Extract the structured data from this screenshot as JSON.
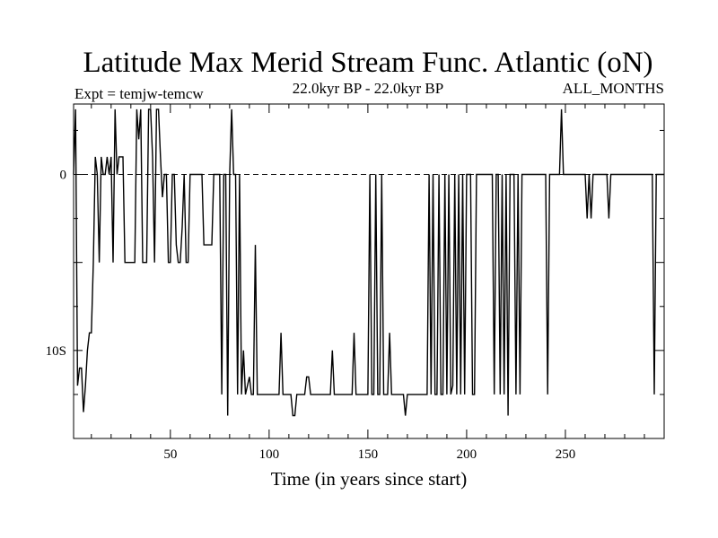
{
  "chart_data": {
    "type": "line",
    "title": "Latitude Max Merid Stream Func. Atlantic (oN)",
    "subtitle_left": "Expt = temjw-temcw",
    "subtitle_center": "22.0kyr BP - 22.0kyr BP",
    "subtitle_right": "ALL_MONTHS",
    "xlabel": "Time (in years since start)",
    "ylabel": "",
    "xlim": [
      1,
      300
    ],
    "ylim": [
      -15,
      4
    ],
    "x_ticks": [
      {
        "value": 50,
        "label": "50"
      },
      {
        "value": 100,
        "label": "100"
      },
      {
        "value": 150,
        "label": "150"
      },
      {
        "value": 200,
        "label": "200"
      },
      {
        "value": 250,
        "label": "250"
      }
    ],
    "y_ticks": [
      {
        "value": 0,
        "label": "0"
      },
      {
        "value": -10,
        "label": "10S"
      }
    ],
    "reference_line": {
      "value": 0,
      "style": "dashed"
    },
    "grid": false,
    "series": [
      {
        "values": [
          [
            1,
            0
          ],
          [
            2,
            3.7
          ],
          [
            3,
            -12
          ],
          [
            4,
            -11
          ],
          [
            5,
            -11
          ],
          [
            6,
            -13.5
          ],
          [
            7,
            -12
          ],
          [
            8,
            -10
          ],
          [
            9,
            -9
          ],
          [
            10,
            -9
          ],
          [
            11,
            -5
          ],
          [
            12,
            1
          ],
          [
            13,
            0
          ],
          [
            14,
            -5
          ],
          [
            15,
            1
          ],
          [
            16,
            0
          ],
          [
            17,
            0
          ],
          [
            18,
            1
          ],
          [
            19,
            0
          ],
          [
            20,
            1
          ],
          [
            21,
            -5
          ],
          [
            22,
            3.7
          ],
          [
            23,
            0
          ],
          [
            24,
            1
          ],
          [
            25,
            1
          ],
          [
            26,
            1
          ],
          [
            27,
            -5
          ],
          [
            28,
            -5
          ],
          [
            29,
            -5
          ],
          [
            30,
            -5
          ],
          [
            31,
            -5
          ],
          [
            32,
            -5
          ],
          [
            33,
            3.7
          ],
          [
            34,
            2
          ],
          [
            35,
            3.7
          ],
          [
            36,
            -5
          ],
          [
            37,
            -5
          ],
          [
            38,
            -5
          ],
          [
            39,
            3.7
          ],
          [
            40,
            3.7
          ],
          [
            41,
            1
          ],
          [
            42,
            -5
          ],
          [
            43,
            3.7
          ],
          [
            44,
            3.7
          ],
          [
            45,
            1
          ],
          [
            46,
            -1.3
          ],
          [
            47,
            0
          ],
          [
            48,
            0
          ],
          [
            49,
            -5
          ],
          [
            50,
            -5
          ],
          [
            51,
            0
          ],
          [
            52,
            0
          ],
          [
            53,
            -4
          ],
          [
            54,
            -5
          ],
          [
            55,
            -5
          ],
          [
            56,
            -3
          ],
          [
            57,
            0
          ],
          [
            58,
            -5
          ],
          [
            59,
            -5
          ],
          [
            60,
            0
          ],
          [
            61,
            0
          ],
          [
            62,
            0
          ],
          [
            63,
            0
          ],
          [
            64,
            0
          ],
          [
            65,
            0
          ],
          [
            66,
            0
          ],
          [
            67,
            -4
          ],
          [
            68,
            -4
          ],
          [
            69,
            -4
          ],
          [
            70,
            -4
          ],
          [
            71,
            -4
          ],
          [
            72,
            0
          ],
          [
            73,
            0
          ],
          [
            74,
            0
          ],
          [
            75,
            0
          ],
          [
            76,
            -12.5
          ],
          [
            77,
            0
          ],
          [
            78,
            0
          ],
          [
            79,
            -13.7
          ],
          [
            80,
            0
          ],
          [
            81,
            3.7
          ],
          [
            82,
            0
          ],
          [
            83,
            0
          ],
          [
            84,
            -12.5
          ],
          [
            85,
            0
          ],
          [
            86,
            -12.5
          ],
          [
            87,
            -10
          ],
          [
            88,
            -12.5
          ],
          [
            89,
            -12
          ],
          [
            90,
            -11.5
          ],
          [
            91,
            -12.5
          ],
          [
            92,
            -12.5
          ],
          [
            93,
            -4
          ],
          [
            94,
            -12.5
          ],
          [
            95,
            -12.5
          ],
          [
            96,
            -12.5
          ],
          [
            97,
            -12.5
          ],
          [
            98,
            -12.5
          ],
          [
            99,
            -12.5
          ],
          [
            100,
            -12.5
          ],
          [
            101,
            -12.5
          ],
          [
            102,
            -12.5
          ],
          [
            103,
            -12.5
          ],
          [
            104,
            -12.5
          ],
          [
            105,
            -12.5
          ],
          [
            106,
            -9
          ],
          [
            107,
            -12.5
          ],
          [
            108,
            -12.5
          ],
          [
            109,
            -12.5
          ],
          [
            110,
            -12.5
          ],
          [
            111,
            -12.5
          ],
          [
            112,
            -13.7
          ],
          [
            113,
            -13.7
          ],
          [
            114,
            -12.5
          ],
          [
            115,
            -12.5
          ],
          [
            116,
            -12.5
          ],
          [
            117,
            -12.5
          ],
          [
            118,
            -12.5
          ],
          [
            119,
            -11.5
          ],
          [
            120,
            -11.5
          ],
          [
            121,
            -12.5
          ],
          [
            122,
            -12.5
          ],
          [
            123,
            -12.5
          ],
          [
            124,
            -12.5
          ],
          [
            125,
            -12.5
          ],
          [
            126,
            -12.5
          ],
          [
            127,
            -12.5
          ],
          [
            128,
            -12.5
          ],
          [
            129,
            -12.5
          ],
          [
            130,
            -12.5
          ],
          [
            131,
            -12.5
          ],
          [
            132,
            -10
          ],
          [
            133,
            -12.5
          ],
          [
            134,
            -12.5
          ],
          [
            135,
            -12.5
          ],
          [
            136,
            -12.5
          ],
          [
            137,
            -12.5
          ],
          [
            138,
            -12.5
          ],
          [
            139,
            -12.5
          ],
          [
            140,
            -12.5
          ],
          [
            141,
            -12.5
          ],
          [
            142,
            -12.5
          ],
          [
            143,
            -9
          ],
          [
            144,
            -12.5
          ],
          [
            145,
            -12.5
          ],
          [
            146,
            -12.5
          ],
          [
            147,
            -12.5
          ],
          [
            148,
            -12.5
          ],
          [
            149,
            -12.5
          ],
          [
            150,
            -12.5
          ],
          [
            151,
            0
          ],
          [
            152,
            -12.5
          ],
          [
            153,
            -12.5
          ],
          [
            154,
            0
          ],
          [
            155,
            -12.5
          ],
          [
            156,
            -12.5
          ],
          [
            157,
            0
          ],
          [
            158,
            -12.5
          ],
          [
            159,
            -12.5
          ],
          [
            160,
            -12.5
          ],
          [
            161,
            -9
          ],
          [
            162,
            -12.5
          ],
          [
            163,
            -12.5
          ],
          [
            164,
            -12.5
          ],
          [
            165,
            -12.5
          ],
          [
            166,
            -12.5
          ],
          [
            167,
            -12.5
          ],
          [
            168,
            -12.5
          ],
          [
            169,
            -13.7
          ],
          [
            170,
            -12.5
          ],
          [
            171,
            -12.5
          ],
          [
            172,
            -12.5
          ],
          [
            173,
            -12.5
          ],
          [
            174,
            -12.5
          ],
          [
            175,
            -12.5
          ],
          [
            176,
            -12.5
          ],
          [
            177,
            -12.5
          ],
          [
            178,
            -12.5
          ],
          [
            179,
            -12.5
          ],
          [
            180,
            -12.5
          ],
          [
            181,
            0
          ],
          [
            182,
            -12.5
          ],
          [
            183,
            0
          ],
          [
            184,
            -12.5
          ],
          [
            185,
            -12.5
          ],
          [
            186,
            0
          ],
          [
            187,
            -12.5
          ],
          [
            188,
            -12.5
          ],
          [
            189,
            0
          ],
          [
            190,
            -12.5
          ],
          [
            191,
            0
          ],
          [
            192,
            -12.5
          ],
          [
            193,
            -12
          ],
          [
            194,
            0
          ],
          [
            195,
            -12.5
          ],
          [
            196,
            0
          ],
          [
            197,
            -12.5
          ],
          [
            198,
            0
          ],
          [
            199,
            -12.5
          ],
          [
            200,
            0
          ],
          [
            201,
            0
          ],
          [
            202,
            0
          ],
          [
            203,
            -12.5
          ],
          [
            204,
            -12.5
          ],
          [
            205,
            0
          ],
          [
            206,
            0
          ],
          [
            207,
            0
          ],
          [
            208,
            0
          ],
          [
            209,
            0
          ],
          [
            210,
            0
          ],
          [
            211,
            0
          ],
          [
            212,
            0
          ],
          [
            213,
            0
          ],
          [
            214,
            -12.5
          ],
          [
            215,
            0
          ],
          [
            216,
            0
          ],
          [
            217,
            -12.5
          ],
          [
            218,
            0
          ],
          [
            219,
            -12.5
          ],
          [
            220,
            0
          ],
          [
            221,
            -13.7
          ],
          [
            222,
            0
          ],
          [
            223,
            0
          ],
          [
            224,
            0
          ],
          [
            225,
            -12.5
          ],
          [
            226,
            0
          ],
          [
            227,
            -12.5
          ],
          [
            228,
            0
          ],
          [
            229,
            0
          ],
          [
            230,
            0
          ],
          [
            231,
            0
          ],
          [
            232,
            0
          ],
          [
            233,
            0
          ],
          [
            234,
            0
          ],
          [
            235,
            0
          ],
          [
            236,
            0
          ],
          [
            237,
            0
          ],
          [
            238,
            0
          ],
          [
            239,
            0
          ],
          [
            240,
            0
          ],
          [
            241,
            -12.5
          ],
          [
            242,
            0
          ],
          [
            243,
            0
          ],
          [
            244,
            0
          ],
          [
            245,
            0
          ],
          [
            246,
            0
          ],
          [
            247,
            0
          ],
          [
            248,
            3.7
          ],
          [
            249,
            0
          ],
          [
            250,
            0
          ],
          [
            251,
            0
          ],
          [
            252,
            0
          ],
          [
            253,
            0
          ],
          [
            254,
            0
          ],
          [
            255,
            0
          ],
          [
            256,
            0
          ],
          [
            257,
            0
          ],
          [
            258,
            0
          ],
          [
            259,
            0
          ],
          [
            260,
            0
          ],
          [
            261,
            -2.5
          ],
          [
            262,
            0
          ],
          [
            263,
            -2.5
          ],
          [
            264,
            0
          ],
          [
            265,
            0
          ],
          [
            266,
            0
          ],
          [
            267,
            0
          ],
          [
            268,
            0
          ],
          [
            269,
            0
          ],
          [
            270,
            0
          ],
          [
            271,
            0
          ],
          [
            272,
            -2.5
          ],
          [
            273,
            0
          ],
          [
            274,
            0
          ],
          [
            275,
            0
          ],
          [
            276,
            0
          ],
          [
            277,
            0
          ],
          [
            278,
            0
          ],
          [
            279,
            0
          ],
          [
            280,
            0
          ],
          [
            281,
            0
          ],
          [
            282,
            0
          ],
          [
            283,
            0
          ],
          [
            284,
            0
          ],
          [
            285,
            0
          ],
          [
            286,
            0
          ],
          [
            287,
            0
          ],
          [
            288,
            0
          ],
          [
            289,
            0
          ],
          [
            290,
            0
          ],
          [
            291,
            0
          ],
          [
            292,
            0
          ],
          [
            293,
            0
          ],
          [
            294,
            0
          ],
          [
            295,
            -12.5
          ],
          [
            296,
            0
          ],
          [
            297,
            0
          ],
          [
            298,
            0
          ],
          [
            299,
            0
          ],
          [
            300,
            0
          ]
        ]
      }
    ]
  }
}
